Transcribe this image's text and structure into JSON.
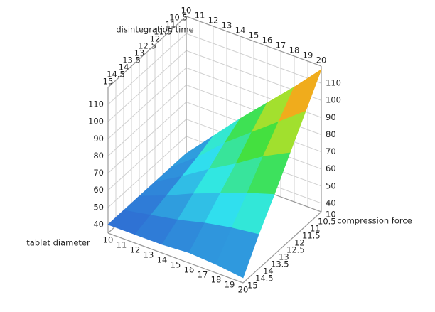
{
  "chart_data": {
    "type": "surface",
    "z_title": "disintegration time",
    "x_title": "tablet diameter",
    "y_title": "compression force",
    "x": [
      10,
      12,
      14,
      16,
      18,
      20
    ],
    "y": [
      10,
      11,
      12,
      13,
      14,
      15
    ],
    "z": [
      [
        40,
        56,
        72,
        87,
        102,
        118
      ],
      [
        40,
        52,
        66,
        78,
        90,
        102
      ],
      [
        40,
        49,
        59,
        68,
        78,
        86
      ],
      [
        40,
        46,
        53,
        59,
        65,
        70
      ],
      [
        40,
        43,
        46,
        50,
        53,
        55
      ],
      [
        40,
        40,
        40,
        41,
        40,
        38
      ]
    ],
    "xlim": [
      10,
      20
    ],
    "xticks": [
      10,
      11,
      12,
      13,
      14,
      15,
      16,
      17,
      18,
      19,
      20
    ],
    "ylim": [
      10,
      15
    ],
    "yticks": [
      10,
      10.5,
      11,
      11.5,
      12,
      12.5,
      13,
      13.5,
      14,
      14.5,
      15
    ],
    "zlim": [
      35,
      120
    ],
    "zticks": [
      40,
      50,
      60,
      70,
      80,
      90,
      100,
      110
    ],
    "grid": true,
    "colormap": [
      "#2f5fd0",
      "#30e8f0",
      "#40e040",
      "#f0e020",
      "#f01010"
    ]
  }
}
